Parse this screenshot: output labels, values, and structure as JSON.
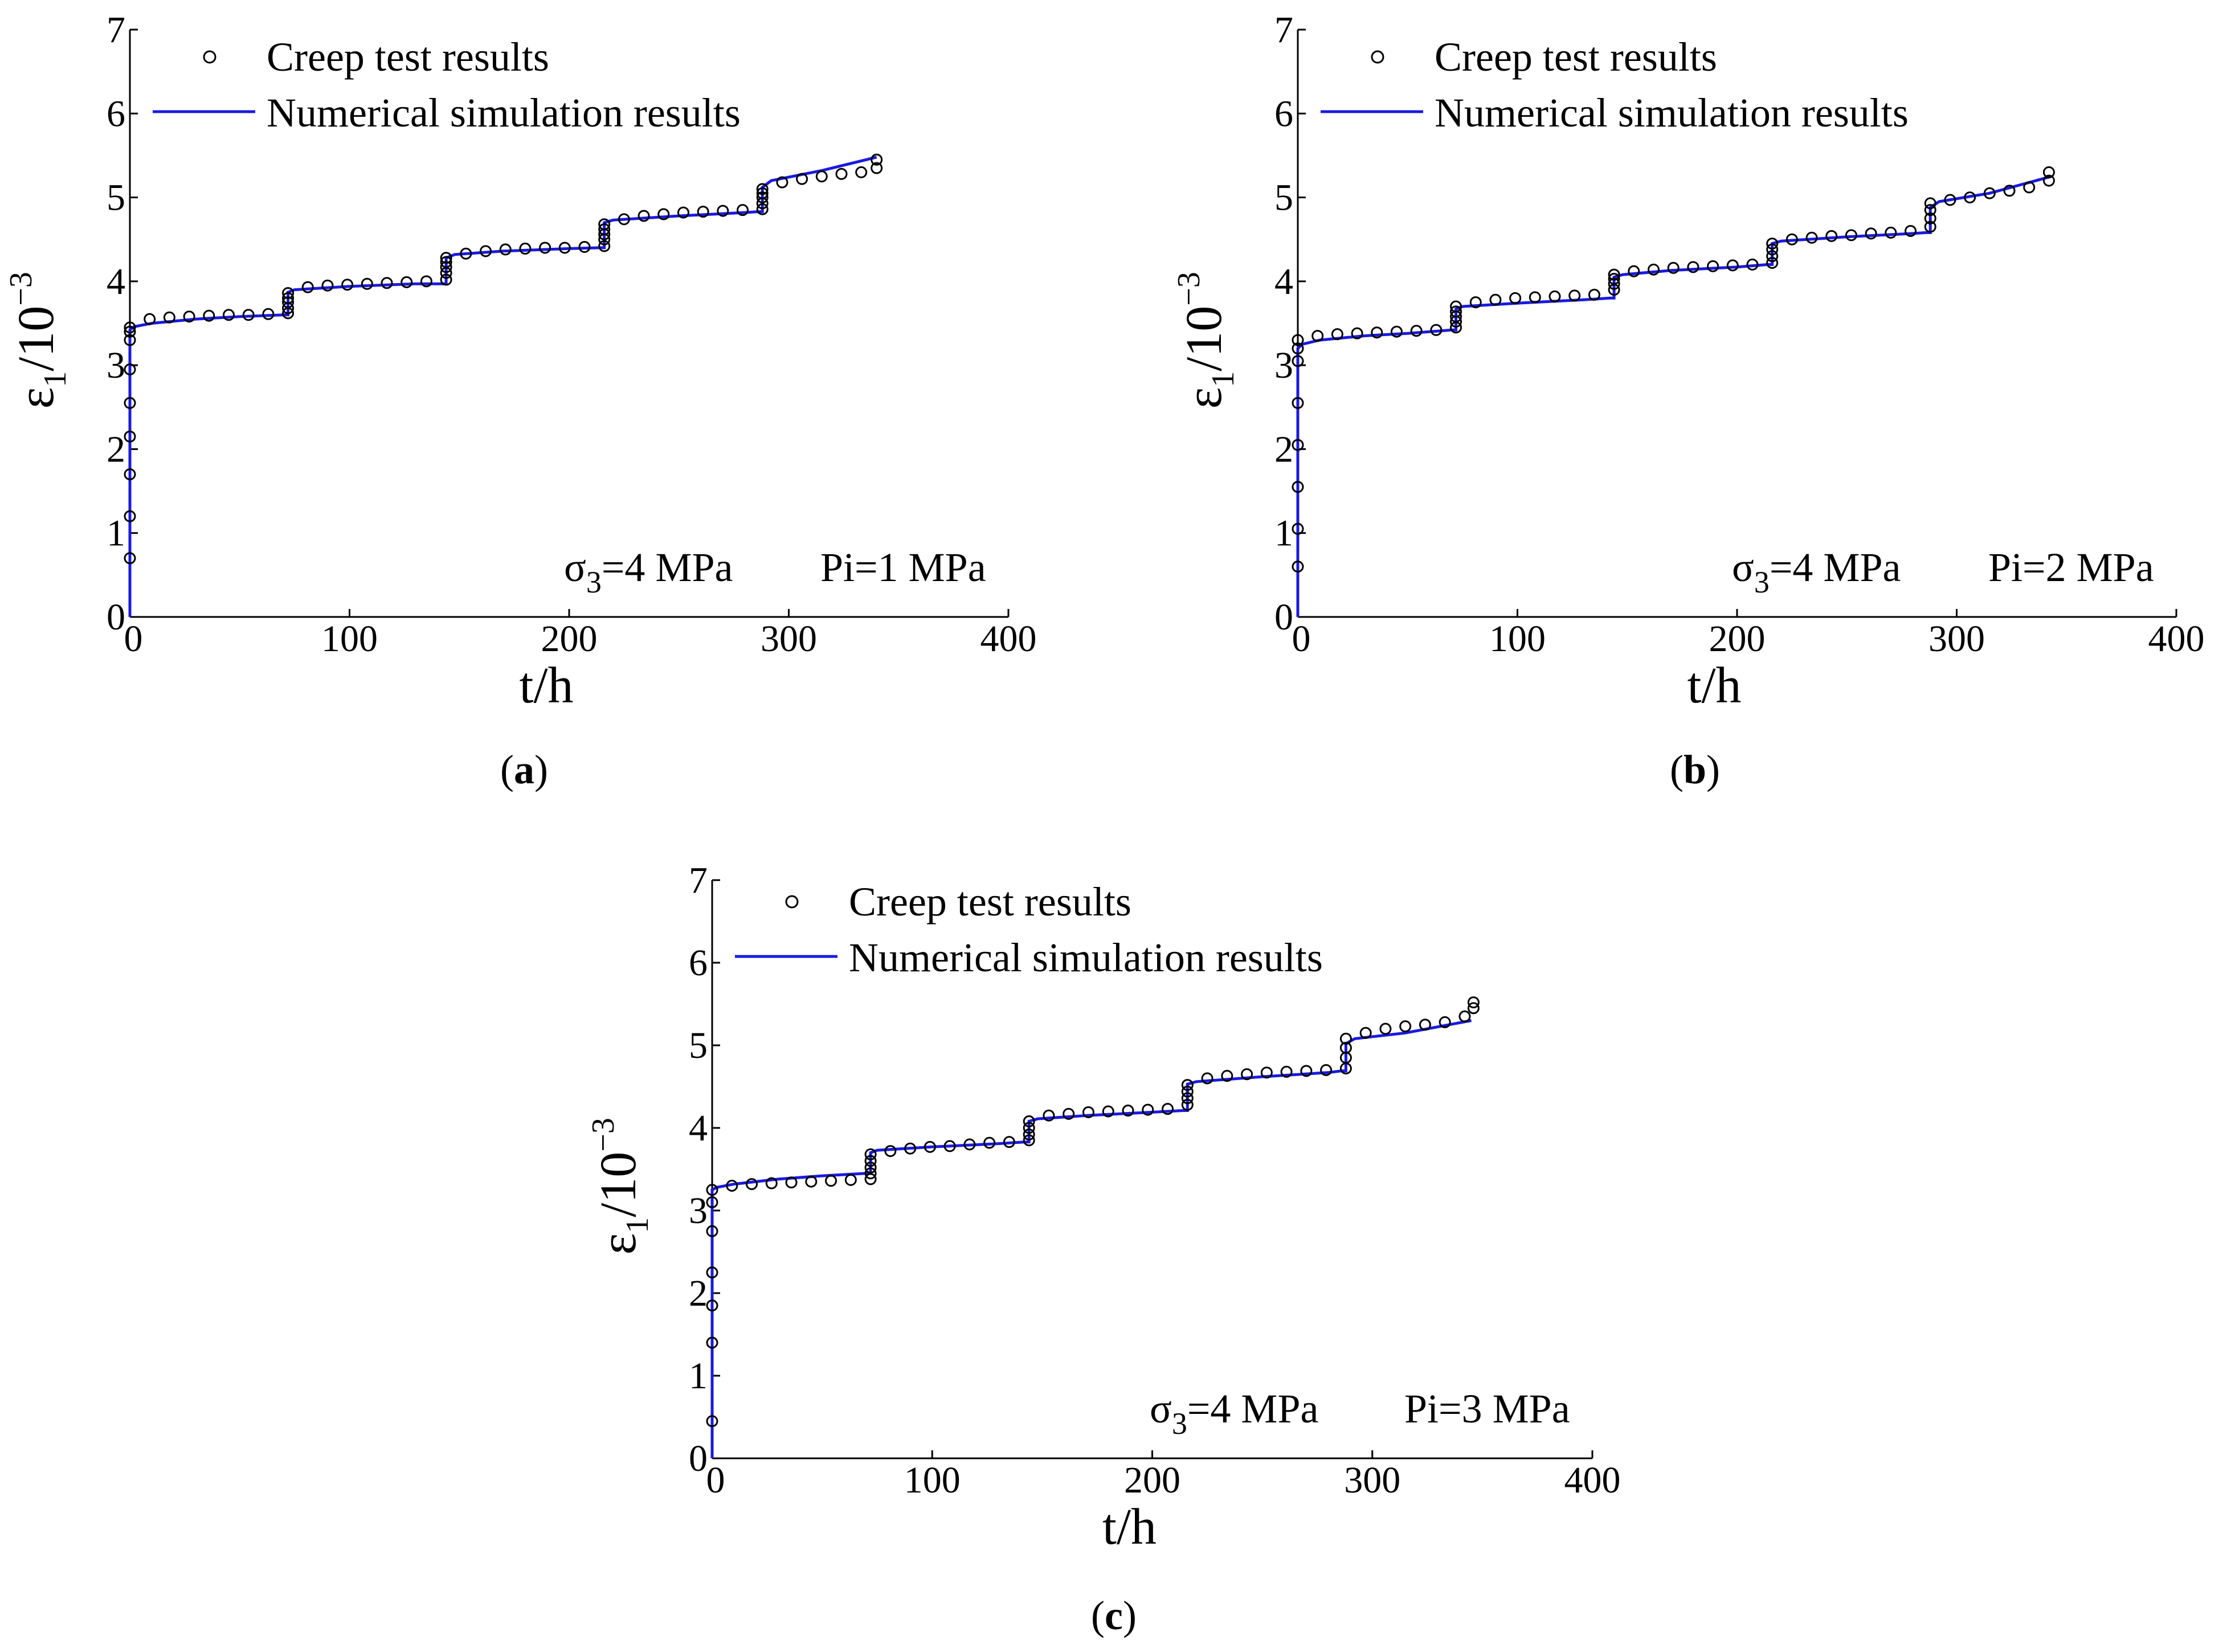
{
  "chart_data": [
    {
      "type": "line",
      "panel_label": "a",
      "xlabel": "t/h",
      "ylabel_base": "ε",
      "ylabel_sub": "1",
      "ylabel_rest": "/10",
      "ylabel_sup": "−3",
      "xlim": [
        0,
        400
      ],
      "ylim": [
        0,
        7
      ],
      "xticks": [
        "0",
        "100",
        "200",
        "300",
        "400"
      ],
      "yticks": [
        "0",
        "1",
        "2",
        "3",
        "4",
        "5",
        "6",
        "7"
      ],
      "annotation": {
        "sigma_base": "σ",
        "sigma_sub": "3",
        "sigma_rest": "=4 MPa",
        "pi": "Pi=1 MPa"
      },
      "legend": [
        "Creep test results",
        "Numerical simulation results"
      ],
      "colors": {
        "line": "#1a1adf",
        "marker": "#000000"
      },
      "series": [
        {
          "name": "Creep test results",
          "x": [
            0,
            0,
            0,
            0,
            0,
            0,
            0,
            0,
            0,
            9,
            18,
            27,
            36,
            45,
            54,
            63,
            72,
            72,
            72,
            72,
            72,
            81,
            90,
            99,
            108,
            117,
            126,
            135,
            144,
            144,
            144,
            144,
            144,
            153,
            162,
            171,
            180,
            189,
            198,
            207,
            216,
            216,
            216,
            216,
            216,
            225,
            234,
            243,
            252,
            261,
            270,
            279,
            288,
            288,
            288,
            288,
            288,
            297,
            306,
            315,
            324,
            333,
            340,
            340
          ],
          "y": [
            0.7,
            1.2,
            1.7,
            2.15,
            2.55,
            2.95,
            3.3,
            3.4,
            3.45,
            3.55,
            3.57,
            3.58,
            3.59,
            3.6,
            3.6,
            3.61,
            3.62,
            3.68,
            3.75,
            3.8,
            3.86,
            3.93,
            3.95,
            3.96,
            3.97,
            3.98,
            3.99,
            4.0,
            4.02,
            4.1,
            4.17,
            4.23,
            4.28,
            4.33,
            4.36,
            4.38,
            4.39,
            4.4,
            4.4,
            4.41,
            4.42,
            4.5,
            4.56,
            4.62,
            4.68,
            4.74,
            4.78,
            4.8,
            4.82,
            4.83,
            4.84,
            4.85,
            4.86,
            4.93,
            5.0,
            5.05,
            5.1,
            5.18,
            5.22,
            5.25,
            5.28,
            5.3,
            5.35,
            5.45
          ]
        },
        {
          "name": "Numerical simulation results",
          "x": [
            0,
            0,
            2,
            10,
            30,
            50,
            70,
            72,
            72,
            75,
            100,
            130,
            142,
            144,
            144,
            148,
            170,
            200,
            214,
            216,
            216,
            220,
            250,
            280,
            286,
            288,
            288,
            292,
            315,
            340
          ],
          "y": [
            0,
            3.42,
            3.46,
            3.5,
            3.55,
            3.58,
            3.6,
            3.6,
            3.87,
            3.9,
            3.94,
            3.97,
            3.97,
            3.97,
            4.28,
            4.32,
            4.36,
            4.39,
            4.4,
            4.4,
            4.7,
            4.73,
            4.78,
            4.82,
            4.83,
            4.83,
            5.12,
            5.2,
            5.32,
            5.48
          ]
        }
      ]
    },
    {
      "type": "line",
      "panel_label": "b",
      "xlabel": "t/h",
      "ylabel_base": "ε",
      "ylabel_sub": "1",
      "ylabel_rest": "/10",
      "ylabel_sup": "−3",
      "xlim": [
        0,
        400
      ],
      "ylim": [
        0,
        7
      ],
      "xticks": [
        "0",
        "100",
        "200",
        "300",
        "400"
      ],
      "yticks": [
        "0",
        "1",
        "2",
        "3",
        "4",
        "5",
        "6",
        "7"
      ],
      "annotation": {
        "sigma_base": "σ",
        "sigma_sub": "3",
        "sigma_rest": "=4 MPa",
        "pi": "Pi=2 MPa"
      },
      "legend": [
        "Creep test results",
        "Numerical simulation results"
      ],
      "colors": {
        "line": "#1a1adf",
        "marker": "#000000"
      },
      "series": [
        {
          "name": "Creep test results",
          "x": [
            0,
            0,
            0,
            0,
            0,
            0,
            0,
            0,
            9,
            18,
            27,
            36,
            45,
            54,
            63,
            72,
            72,
            72,
            72,
            72,
            81,
            90,
            99,
            108,
            117,
            126,
            135,
            144,
            144,
            144,
            144,
            153,
            162,
            171,
            180,
            189,
            198,
            207,
            216,
            216,
            216,
            216,
            225,
            234,
            243,
            252,
            261,
            270,
            279,
            288,
            288,
            288,
            288,
            297,
            306,
            315,
            324,
            333,
            342,
            342
          ],
          "y": [
            0.6,
            1.05,
            1.55,
            2.05,
            2.55,
            3.05,
            3.2,
            3.3,
            3.35,
            3.37,
            3.38,
            3.39,
            3.4,
            3.41,
            3.42,
            3.45,
            3.52,
            3.58,
            3.64,
            3.7,
            3.75,
            3.78,
            3.8,
            3.81,
            3.82,
            3.83,
            3.84,
            3.9,
            3.97,
            4.03,
            4.08,
            4.12,
            4.14,
            4.16,
            4.17,
            4.18,
            4.19,
            4.2,
            4.22,
            4.3,
            4.38,
            4.45,
            4.5,
            4.52,
            4.54,
            4.55,
            4.57,
            4.58,
            4.6,
            4.65,
            4.75,
            4.85,
            4.93,
            4.97,
            5.0,
            5.05,
            5.08,
            5.12,
            5.2,
            5.3
          ]
        },
        {
          "name": "Numerical simulation results",
          "x": [
            0,
            0,
            2,
            10,
            30,
            50,
            70,
            72,
            72,
            75,
            100,
            130,
            142,
            144,
            144,
            148,
            170,
            200,
            214,
            216,
            216,
            220,
            250,
            280,
            286,
            288,
            288,
            292,
            315,
            343
          ],
          "y": [
            0,
            3.2,
            3.25,
            3.3,
            3.35,
            3.38,
            3.42,
            3.42,
            3.67,
            3.7,
            3.74,
            3.78,
            3.8,
            3.8,
            4.05,
            4.08,
            4.13,
            4.17,
            4.2,
            4.2,
            4.45,
            4.48,
            4.53,
            4.57,
            4.58,
            4.58,
            4.88,
            4.95,
            5.05,
            5.25
          ]
        }
      ]
    },
    {
      "type": "line",
      "panel_label": "c",
      "xlabel": "t/h",
      "ylabel_base": "ε",
      "ylabel_sub": "1",
      "ylabel_rest": "/10",
      "ylabel_sup": "−3",
      "xlim": [
        0,
        400
      ],
      "ylim": [
        0,
        7
      ],
      "xticks": [
        "0",
        "100",
        "200",
        "300",
        "400"
      ],
      "yticks": [
        "0",
        "1",
        "2",
        "3",
        "4",
        "5",
        "6",
        "7"
      ],
      "annotation": {
        "sigma_base": "σ",
        "sigma_sub": "3",
        "sigma_rest": "=4 MPa",
        "pi": "Pi=3 MPa"
      },
      "legend": [
        "Creep test results",
        "Numerical simulation results"
      ],
      "colors": {
        "line": "#1a1adf",
        "marker": "#000000"
      },
      "series": [
        {
          "name": "Creep test results",
          "x": [
            0,
            0,
            0,
            0,
            0,
            0,
            0,
            9,
            18,
            27,
            36,
            45,
            54,
            63,
            72,
            72,
            72,
            72,
            72,
            81,
            90,
            99,
            108,
            117,
            126,
            135,
            144,
            144,
            144,
            144,
            153,
            162,
            171,
            180,
            189,
            198,
            207,
            216,
            216,
            216,
            216,
            225,
            234,
            243,
            252,
            261,
            270,
            279,
            288,
            288,
            288,
            288,
            297,
            306,
            315,
            324,
            333,
            342,
            346,
            346
          ],
          "y": [
            0.45,
            1.4,
            1.85,
            2.25,
            2.75,
            3.1,
            3.25,
            3.3,
            3.32,
            3.33,
            3.34,
            3.35,
            3.36,
            3.37,
            3.38,
            3.45,
            3.52,
            3.6,
            3.68,
            3.72,
            3.75,
            3.77,
            3.78,
            3.8,
            3.82,
            3.83,
            3.85,
            3.92,
            4.0,
            4.08,
            4.15,
            4.17,
            4.19,
            4.2,
            4.21,
            4.22,
            4.23,
            4.28,
            4.36,
            4.44,
            4.52,
            4.6,
            4.63,
            4.65,
            4.67,
            4.68,
            4.69,
            4.7,
            4.72,
            4.85,
            4.97,
            5.08,
            5.15,
            5.2,
            5.23,
            5.25,
            5.28,
            5.35,
            5.45,
            5.52
          ]
        },
        {
          "name": "Numerical simulation results",
          "x": [
            0,
            0,
            2,
            10,
            30,
            50,
            70,
            72,
            72,
            75,
            100,
            130,
            142,
            144,
            144,
            148,
            170,
            200,
            214,
            216,
            216,
            220,
            250,
            280,
            286,
            288,
            288,
            292,
            315,
            345
          ],
          "y": [
            0,
            3.25,
            3.28,
            3.32,
            3.38,
            3.42,
            3.45,
            3.45,
            3.7,
            3.73,
            3.77,
            3.81,
            3.83,
            3.83,
            4.08,
            4.11,
            4.15,
            4.19,
            4.21,
            4.21,
            4.53,
            4.56,
            4.62,
            4.67,
            4.69,
            4.69,
            5.02,
            5.08,
            5.15,
            5.3
          ]
        }
      ]
    }
  ]
}
